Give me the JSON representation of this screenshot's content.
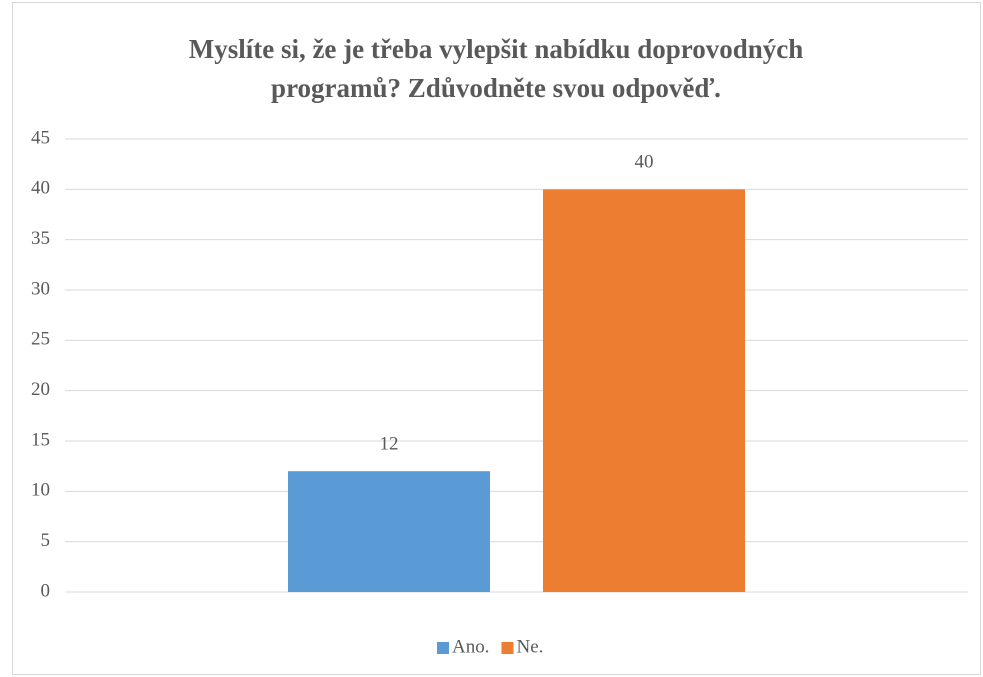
{
  "chart_data": {
    "type": "bar",
    "title": "Myslíte si, že je třeba vylepšit nabídku doprovodných programů? Zdůvodněte svou odpověď.",
    "categories": [
      null
    ],
    "series": [
      {
        "name": "Ano.",
        "color": "#5b9bd5",
        "values": [
          12
        ]
      },
      {
        "name": "Ne.",
        "color": "#ed7d31",
        "values": [
          40
        ]
      }
    ],
    "ylim": [
      0,
      45
    ],
    "yticks": [
      0,
      5,
      10,
      15,
      20,
      25,
      30,
      35,
      40,
      45
    ],
    "grid": true,
    "legend": "bottom",
    "data_labels": true
  }
}
